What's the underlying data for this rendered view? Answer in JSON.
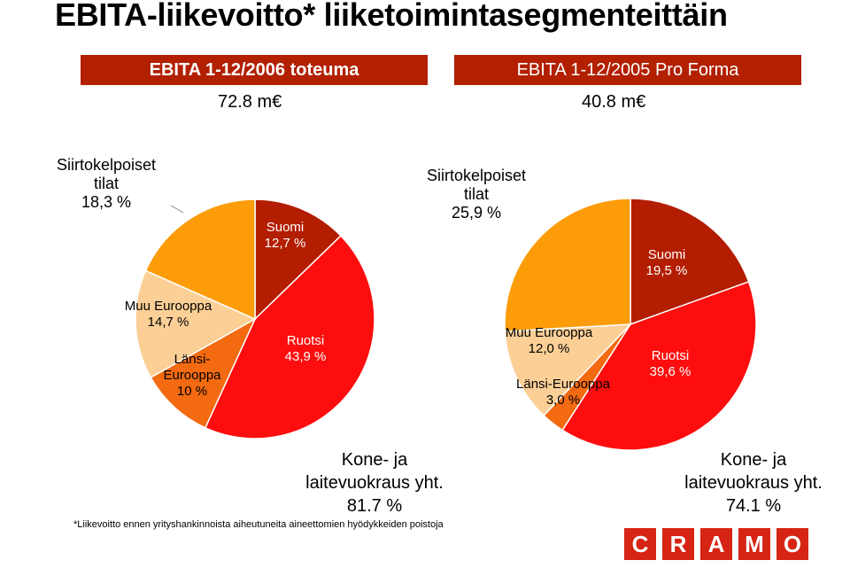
{
  "title": "EBITA-liikevoitto* liiketoimintasegmenteittäin",
  "headers": {
    "left": {
      "label": "EBITA 1-12/2006 toteuma",
      "value": "72.8 m€"
    },
    "right": {
      "label": "EBITA 1-12/2005 Pro Forma",
      "value": "40.8 m€"
    }
  },
  "colors": {
    "header_bar": "#b22000",
    "Suomi": "#b31d00",
    "Ruotsi": "#fd0d0d",
    "Länsi-Eurooppa": "#f36a10",
    "Muu Eurooppa": "#fbcf96",
    "Siirtokelpoiset tilat": "#fb9c08"
  },
  "chart_data": [
    {
      "type": "pie",
      "name": "EBITA 1-12/2006 toteuma",
      "slices": [
        {
          "label": "Suomi",
          "value": 12.7,
          "label_lines": [
            "Suomi",
            "12,7 %"
          ]
        },
        {
          "label": "Ruotsi",
          "value": 43.9,
          "label_lines": [
            "Ruotsi",
            "43,9 %"
          ]
        },
        {
          "label": "Länsi-Eurooppa",
          "value": 10.0,
          "label_lines": [
            "Länsi-",
            "Eurooppa",
            "10 %"
          ]
        },
        {
          "label": "Muu Eurooppa",
          "value": 14.7,
          "label_lines": [
            "Muu Eurooppa",
            "14,7 %"
          ]
        },
        {
          "label": "Siirtokelpoiset tilat",
          "value": 18.3,
          "label_lines": [
            "Siirtokelpoiset",
            "tilat",
            "18,3 %"
          ]
        }
      ],
      "total_lines": [
        "Kone- ja",
        "laitevuokraus yht.",
        "81.7 %"
      ]
    },
    {
      "type": "pie",
      "name": "EBITA 1-12/2005 Pro Forma",
      "slices": [
        {
          "label": "Suomi",
          "value": 19.5,
          "label_lines": [
            "Suomi",
            "19,5 %"
          ]
        },
        {
          "label": "Ruotsi",
          "value": 39.6,
          "label_lines": [
            "Ruotsi",
            "39,6 %"
          ]
        },
        {
          "label": "Länsi-Eurooppa",
          "value": 3.0,
          "label_lines": [
            "Länsi-Eurooppa",
            "3,0 %"
          ]
        },
        {
          "label": "Muu Eurooppa",
          "value": 12.0,
          "label_lines": [
            "Muu Eurooppa",
            "12,0 %"
          ]
        },
        {
          "label": "Siirtokelpoiset tilat",
          "value": 25.9,
          "label_lines": [
            "Siirtokelpoiset",
            "tilat",
            "25,9 %"
          ]
        }
      ],
      "total_lines": [
        "Kone- ja",
        "laitevuokraus yht.",
        "74.1 %"
      ]
    }
  ],
  "footnote": "*Liikevoitto ennen yrityshankinnoista aiheutuneita aineettomien hyödykkeiden poistoja",
  "logo": {
    "letters": [
      "C",
      "R",
      "A",
      "M",
      "O"
    ]
  }
}
